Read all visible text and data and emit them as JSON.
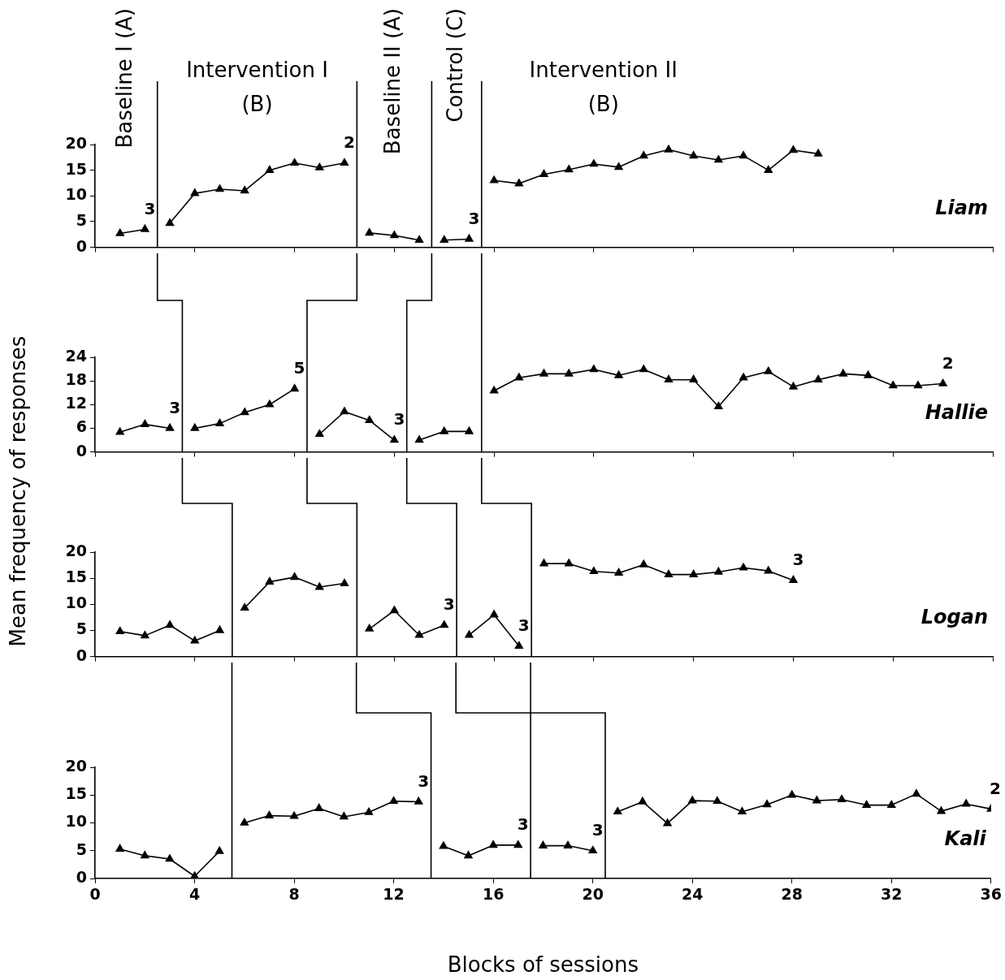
{
  "chart_data": [
    {
      "type": "line",
      "title": "Liam",
      "ylabel": "Mean frequency of responses",
      "xlim": [
        0,
        36
      ],
      "xticks": [
        0,
        4,
        8,
        12,
        16,
        20,
        24,
        28,
        32,
        36
      ],
      "ylim": [
        0,
        20
      ],
      "yticks": [
        0,
        5,
        10,
        15,
        20
      ],
      "tick_labels": "y",
      "marker": "triangle",
      "line_style": "solid",
      "series": [
        {
          "color": "#000000",
          "x": [
            1,
            2
          ],
          "values": [
            2.7,
            3.5
          ]
        },
        {
          "color": "#000000",
          "x": [
            3,
            4,
            5,
            6,
            7,
            8,
            9,
            10
          ],
          "values": [
            4.7,
            10.5,
            11.3,
            11.0,
            15.0,
            16.4,
            15.5,
            16.4
          ]
        },
        {
          "color": "#000000",
          "x": [
            11,
            12,
            13
          ],
          "values": [
            2.8,
            2.3,
            1.4
          ]
        },
        {
          "color": "#000000",
          "x": [
            14,
            15
          ],
          "values": [
            1.4,
            1.6
          ]
        },
        {
          "color": "#000000",
          "x": [
            16,
            17,
            18,
            19,
            20,
            21,
            22,
            23,
            24,
            25,
            26,
            27,
            28,
            29
          ],
          "values": [
            13.0,
            12.4,
            14.2,
            15.1,
            16.2,
            15.6,
            17.8,
            19.0,
            17.8,
            17.0,
            17.8,
            15.0,
            18.9,
            18.2
          ]
        }
      ],
      "ref_lines": [
        {
          "axis": "x",
          "value": 2.5
        },
        {
          "axis": "x",
          "value": 10.5
        },
        {
          "axis": "x",
          "value": 13.5
        },
        {
          "axis": "x",
          "value": 15.5
        }
      ],
      "annotations": [
        "Baseline I (A)",
        "Intervention I (B)",
        "Baseline II (A)",
        "Control (C)",
        "Intervention II (B)",
        {
          "text": "3",
          "x": 2,
          "y": 3.5
        },
        {
          "text": "2",
          "x": 10,
          "y": 16.4
        },
        {
          "text": "3",
          "x": 15,
          "y": 1.6
        }
      ]
    },
    {
      "type": "line",
      "title": "Hallie",
      "xlim": [
        0,
        36
      ],
      "xticks": [
        0,
        4,
        8,
        12,
        16,
        20,
        24,
        28,
        32,
        36
      ],
      "ylim": [
        0,
        24
      ],
      "yticks": [
        0,
        6,
        12,
        18,
        24
      ],
      "tick_labels": "y",
      "marker": "triangle",
      "line_style": "solid",
      "series": [
        {
          "color": "#000000",
          "x": [
            1,
            2,
            3
          ],
          "values": [
            5,
            7,
            6
          ]
        },
        {
          "color": "#000000",
          "x": [
            4,
            5,
            6,
            7,
            8
          ],
          "values": [
            6,
            7.2,
            10,
            12,
            16
          ]
        },
        {
          "color": "#000000",
          "x": [
            9,
            10,
            11,
            12
          ],
          "values": [
            4.5,
            10.2,
            8,
            3
          ]
        },
        {
          "color": "#000000",
          "x": [
            13,
            14,
            15
          ],
          "values": [
            3,
            5.2,
            5.2
          ]
        },
        {
          "color": "#000000",
          "x": [
            16,
            17,
            18,
            19,
            20,
            21,
            22,
            23,
            24,
            25,
            26,
            27,
            28,
            29,
            30,
            31,
            32,
            33,
            34
          ],
          "values": [
            15.5,
            18.8,
            19.8,
            19.8,
            20.9,
            19.4,
            20.9,
            18.3,
            18.3,
            11.5,
            18.8,
            20.4,
            16.5,
            18.3,
            19.8,
            19.4,
            16.8,
            16.8,
            17.3
          ]
        }
      ],
      "ref_lines": [
        {
          "axis": "x",
          "value": 3.5
        },
        {
          "axis": "x",
          "value": 8.5
        },
        {
          "axis": "x",
          "value": 12.5
        },
        {
          "axis": "x",
          "value": 15.5
        }
      ],
      "annotations": [
        {
          "text": "3",
          "x": 3,
          "y": 6
        },
        {
          "text": "5",
          "x": 8,
          "y": 16
        },
        {
          "text": "3",
          "x": 12,
          "y": 3
        },
        {
          "text": "2",
          "x": 34,
          "y": 17.3
        }
      ]
    },
    {
      "type": "line",
      "title": "Logan",
      "xlim": [
        0,
        36
      ],
      "xticks": [
        0,
        4,
        8,
        12,
        16,
        20,
        24,
        28,
        32,
        36
      ],
      "ylim": [
        0,
        20
      ],
      "yticks": [
        0,
        5,
        10,
        15,
        20
      ],
      "tick_labels": "y",
      "marker": "triangle",
      "line_style": "solid",
      "series": [
        {
          "color": "#000000",
          "x": [
            1,
            2,
            3,
            4,
            5
          ],
          "values": [
            4.8,
            4,
            6,
            3,
            5
          ]
        },
        {
          "color": "#000000",
          "x": [
            6,
            7,
            8,
            9,
            10
          ],
          "values": [
            9.3,
            14.3,
            15.2,
            13.3,
            14
          ]
        },
        {
          "color": "#000000",
          "x": [
            11,
            12,
            13,
            14
          ],
          "values": [
            5.3,
            8.8,
            4.1,
            6
          ]
        },
        {
          "color": "#000000",
          "x": [
            15,
            16,
            17
          ],
          "values": [
            4.1,
            8,
            2
          ]
        },
        {
          "color": "#000000",
          "x": [
            18,
            19,
            20,
            21,
            22,
            23,
            24,
            25,
            26,
            27,
            28
          ],
          "values": [
            17.8,
            17.8,
            16.3,
            16,
            17.6,
            15.7,
            15.7,
            16.2,
            17,
            16.4,
            14.6
          ]
        }
      ],
      "ref_lines": [
        {
          "axis": "x",
          "value": 5.5
        },
        {
          "axis": "x",
          "value": 10.5
        },
        {
          "axis": "x",
          "value": 14.5
        },
        {
          "axis": "x",
          "value": 17.5
        }
      ],
      "annotations": [
        {
          "text": "3",
          "x": 14,
          "y": 6
        },
        {
          "text": "3",
          "x": 17,
          "y": 2
        },
        {
          "text": "3",
          "x": 28,
          "y": 14.6
        }
      ]
    },
    {
      "type": "line",
      "title": "Kali",
      "xlabel": "Blocks of sessions",
      "xlim": [
        0,
        36
      ],
      "xticks": [
        0,
        4,
        8,
        12,
        16,
        20,
        24,
        28,
        32,
        36
      ],
      "ylim": [
        0,
        20
      ],
      "yticks": [
        0,
        5,
        10,
        15,
        20
      ],
      "marker": "triangle",
      "line_style": "solid",
      "series": [
        {
          "color": "#000000",
          "x": [
            1,
            2,
            3,
            4,
            5
          ],
          "values": [
            5.3,
            4.1,
            3.5,
            0.4,
            4.9
          ]
        },
        {
          "color": "#000000",
          "x": [
            6,
            7,
            8,
            9,
            10,
            11,
            12,
            13
          ],
          "values": [
            10,
            11.3,
            11.2,
            12.6,
            11.1,
            11.9,
            13.9,
            13.8
          ]
        },
        {
          "color": "#000000",
          "x": [
            14,
            15,
            16,
            17
          ],
          "values": [
            5.8,
            4.1,
            6,
            6
          ]
        },
        {
          "color": "#000000",
          "x": [
            18,
            19,
            20
          ],
          "values": [
            5.9,
            5.9,
            5.0
          ]
        },
        {
          "color": "#000000",
          "x": [
            21,
            22,
            23,
            24,
            25,
            26,
            27,
            28,
            29,
            30,
            31,
            32,
            33,
            34,
            35,
            36
          ],
          "values": [
            12,
            13.8,
            9.9,
            14,
            13.9,
            12,
            13.3,
            15,
            14,
            14.2,
            13.2,
            13.2,
            15.2,
            12.1,
            13.4,
            12.5
          ]
        }
      ],
      "ref_lines": [
        {
          "axis": "x",
          "value": 5.5
        },
        {
          "axis": "x",
          "value": 13.5
        },
        {
          "axis": "x",
          "value": 17.5
        },
        {
          "axis": "x",
          "value": 20.5
        }
      ],
      "annotations": [
        {
          "text": "3",
          "x": 13,
          "y": 13.8
        },
        {
          "text": "3",
          "x": 17,
          "y": 6
        },
        {
          "text": "3",
          "x": 20,
          "y": 5.0
        },
        {
          "text": "2",
          "x": 36,
          "y": 12.5
        }
      ]
    }
  ]
}
